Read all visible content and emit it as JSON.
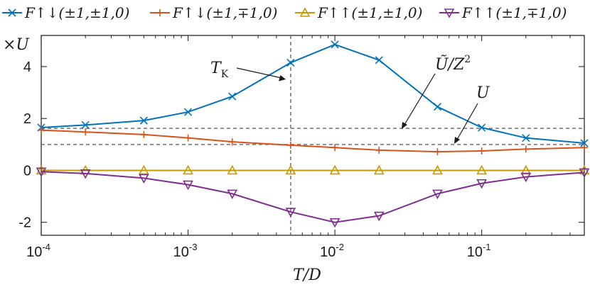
{
  "chart_data": {
    "type": "line",
    "x_scale": "log",
    "xlim": [
      0.0001,
      0.5
    ],
    "ylim": [
      -2.5,
      5.2
    ],
    "x_ticks": [
      0.0001,
      0.001,
      0.01,
      0.1
    ],
    "x_tick_labels": [
      {
        "base": "10",
        "exp": "-4"
      },
      {
        "base": "10",
        "exp": "-3"
      },
      {
        "base": "10",
        "exp": "-2"
      },
      {
        "base": "10",
        "exp": "-1"
      }
    ],
    "y_ticks": [
      -2,
      0,
      2,
      4
    ],
    "y_tick_labels": [
      "-2",
      "0",
      "2",
      "4"
    ],
    "xlabel": "T/D",
    "y_unit_label": "×U",
    "legend_position": "top",
    "x": [
      0.0001,
      0.0002,
      0.0005,
      0.001,
      0.002,
      0.005,
      0.01,
      0.02,
      0.05,
      0.1,
      0.2,
      0.5
    ],
    "series": [
      {
        "name": "F↑↓(±1,±1,0)",
        "color": "#0072BD",
        "marker": "x",
        "values": [
          1.65,
          1.75,
          1.92,
          2.25,
          2.85,
          4.15,
          4.85,
          4.25,
          2.45,
          1.65,
          1.25,
          1.05
        ]
      },
      {
        "name": "F↑↓(±1,∓1,0)",
        "color": "#D95319",
        "marker": "+",
        "values": [
          1.55,
          1.48,
          1.38,
          1.25,
          1.1,
          0.97,
          0.88,
          0.78,
          0.72,
          0.75,
          0.82,
          0.88
        ]
      },
      {
        "name": "F↑↑(±1,±1,0)",
        "color": "#C79A00",
        "marker": "triangle-up",
        "values": [
          0,
          0,
          0,
          0,
          0,
          0,
          0,
          0,
          0,
          0,
          0,
          0
        ]
      },
      {
        "name": "F↑↑(±1,∓1,0)",
        "color": "#7E2F8E",
        "marker": "triangle-down",
        "values": [
          -0.05,
          -0.12,
          -0.3,
          -0.55,
          -0.9,
          -1.6,
          -2.0,
          -1.75,
          -0.9,
          -0.5,
          -0.25,
          -0.08
        ]
      }
    ],
    "reference_lines": [
      {
        "orientation": "horizontal",
        "value": 1.62,
        "label": "Ũ/Z²",
        "style": "dashed",
        "color": "#707070"
      },
      {
        "orientation": "horizontal",
        "value": 1.0,
        "label": "U",
        "style": "dashed",
        "color": "#707070"
      },
      {
        "orientation": "vertical",
        "value": 0.005,
        "label": "T_K",
        "style": "dashed",
        "color": "#707070"
      }
    ],
    "annotations": {
      "tk_main": "T",
      "tk_sub": "K",
      "u_tilde": "Ũ/Z",
      "u_tilde_sup": "2",
      "u": "U"
    }
  }
}
